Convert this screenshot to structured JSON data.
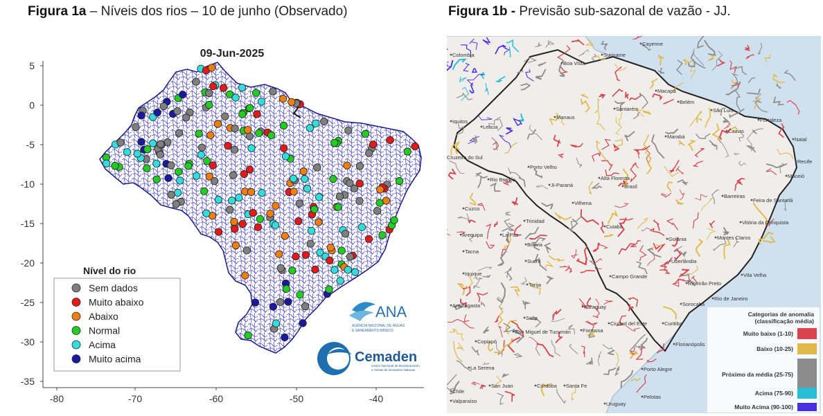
{
  "figure_a": {
    "caption_bold": "Figura 1a",
    "caption_rest": " – Níveis dos rios – 10 de junho (Observado)",
    "date": "09-Jun-2025",
    "y_ticks": [
      "5",
      "0",
      "-5",
      "-10",
      "-15",
      "-20",
      "-25",
      "-30",
      "-35"
    ],
    "x_ticks": [
      "-80",
      "-70",
      "-60",
      "-50",
      "-40"
    ],
    "legend_title": "Nível do rio",
    "legend": [
      {
        "label": "Sem dados",
        "color": "#7f7f7f"
      },
      {
        "label": "Muito abaixo",
        "color": "#e31a1c"
      },
      {
        "label": "Abaixo",
        "color": "#f07e10"
      },
      {
        "label": "Normal",
        "color": "#22cc22"
      },
      {
        "label": "Acima",
        "color": "#33dddd"
      },
      {
        "label": "Muito acima",
        "color": "#1a1aa0"
      }
    ],
    "ana_logo": "ANA",
    "ana_sub1": "AGÊNCIA NACIONAL DE ÁGUAS",
    "ana_sub2": "E SANEAMENTO BÁSICO",
    "cemaden_logo": "Cemaden",
    "cemaden_sub1": "Centro Nacional de Monitoramento",
    "cemaden_sub2": "e Alertas de Desastres Naturais"
  },
  "figure_b": {
    "caption_bold": "Figura 1b -",
    "caption_rest": " Previsão sub-sazonal de vazão - JJ.",
    "legend_title_1": "Categorias de anomalia",
    "legend_title_2": "(classificação média)",
    "legend": [
      {
        "label": "Muito baixo (1-10)",
        "color": "#d9434e"
      },
      {
        "label": "Baixo (10-25)",
        "color": "#e3b84a"
      },
      {
        "label": "Próximo da média (25-75)",
        "color": "#8c8c8c"
      },
      {
        "label": "Acima (75-90)",
        "color": "#28bcd6"
      },
      {
        "label": "Muito Acima (90-100)",
        "color": "#4a2ee0"
      }
    ],
    "cities": {
      "cayenne": "Cayenne",
      "colombia": "Colombia",
      "suriname": "Suriname",
      "boa_vista": "Boa Vista",
      "macapa": "Macapá",
      "belem": "Belém",
      "sao_luis": "São Luís",
      "fortaleza": "Fortaleza",
      "manaus": "Manaus",
      "santarem": "Santarém",
      "caxias": "Caxias",
      "natal": "Natal",
      "iquitos": "Iquitos",
      "leticia": "Leticia",
      "maraba": "Marabá",
      "recife": "Recife",
      "cruzeiro": "Cruzeiro do Sul",
      "porto_velho": "Porto Velho",
      "maceio": "Maceió",
      "rio_branco": "Rio Branco",
      "ji_parana": "Ji-Paraná",
      "alta_floresta": "Alta Floresta",
      "brasil": "Brasil",
      "barreiras": "Barreiras",
      "feira": "Feira de Santana",
      "cuzco": "Cuzco",
      "vilhena": "Vilhena",
      "trinidad": "Trinidad",
      "vitoria_conquista": "Vitória da Conquista",
      "arequipa": "Arequipa",
      "la_paz": "La Paz",
      "cuiaba": "Cuiabá",
      "goiania": "Goiânia",
      "bolivia": "Bolivia",
      "montes_claros": "Montes Claros",
      "tacna": "Tacna",
      "sucre": "Sucre",
      "uberlandia": "Uberlândia",
      "iquique": "Iquique",
      "campo_grande": "Campo Grande",
      "ribeirao": "Ribeirão Preto",
      "vila_velha": "Vila Velha",
      "tarija": "Tarija",
      "antofagasta": "Antofagasta",
      "paraguay": "Paraguay",
      "sorocaba": "Sorocaba",
      "rio": "Rio de Janeiro",
      "salta": "Salta",
      "ciudad_este": "Ciudad del Este",
      "curitiba": "Curitiba",
      "tucuman": "San Miguel de Tucumán",
      "formosa": "Formosa",
      "florianopolis": "Florianópolis",
      "copiapo": "Copiapó",
      "la_serena": "La Serena",
      "porto_alegre": "Porto Alegre",
      "san_juan": "San Juan",
      "cordoba": "Córdoba",
      "santa_fe": "Santa Fe",
      "pelotas": "Pelotas",
      "chile": "Chile",
      "valparaiso": "Valparaíso",
      "uruguay": "Uruguay"
    }
  }
}
